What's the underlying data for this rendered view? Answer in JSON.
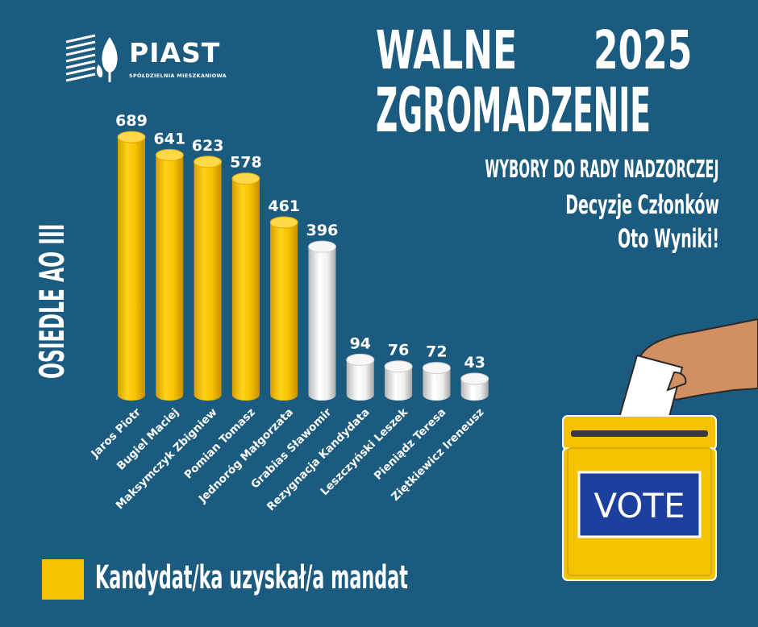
{
  "brand": {
    "name": "PIAST",
    "tagline": "SPÓŁDZIELNIA MIESZKANIOWA"
  },
  "header": {
    "title_line1": "WALNE",
    "year": "2025",
    "title_line2": "ZGROMADZENIE",
    "subtitle": "WYBORY DO RADY NADZORCZEJ",
    "tagline_line1": "Decyzje Członków",
    "tagline_line2": "Oto Wyniki!"
  },
  "side_label": "OSIEDLE AO III",
  "legend": {
    "label": "Kandydat/ka uzyskał/a mandat",
    "color": "#f5c200"
  },
  "ballot": {
    "label": "VOTE"
  },
  "colors": {
    "background": "#1c5b80",
    "elected": "#f5c200",
    "not_elected": "#e8e8e8"
  },
  "chart_data": {
    "type": "bar",
    "bar_style": "3d-cylinder",
    "categories": [
      "Jaros Piotr",
      "Bugiel Maciej",
      "Maksymczyk Zbigniew",
      "Pomian Tomasz",
      "Jednoróg Małgorzata",
      "Grabias Sławomir",
      "Rezygnacja Kandydata",
      "Leszczyński Leszek",
      "Pieniądz Teresa",
      "Ziętkiewicz Ireneusz"
    ],
    "values": [
      689,
      641,
      623,
      578,
      461,
      396,
      94,
      76,
      72,
      43
    ],
    "elected": [
      true,
      true,
      true,
      true,
      true,
      false,
      false,
      false,
      false,
      false
    ],
    "value_labels": [
      "689",
      "641",
      "623",
      "578",
      "461",
      "396",
      "94",
      "76",
      "72",
      "43"
    ],
    "ylim": [
      0,
      700
    ],
    "grid": false,
    "legend_position": "bottom-left"
  }
}
